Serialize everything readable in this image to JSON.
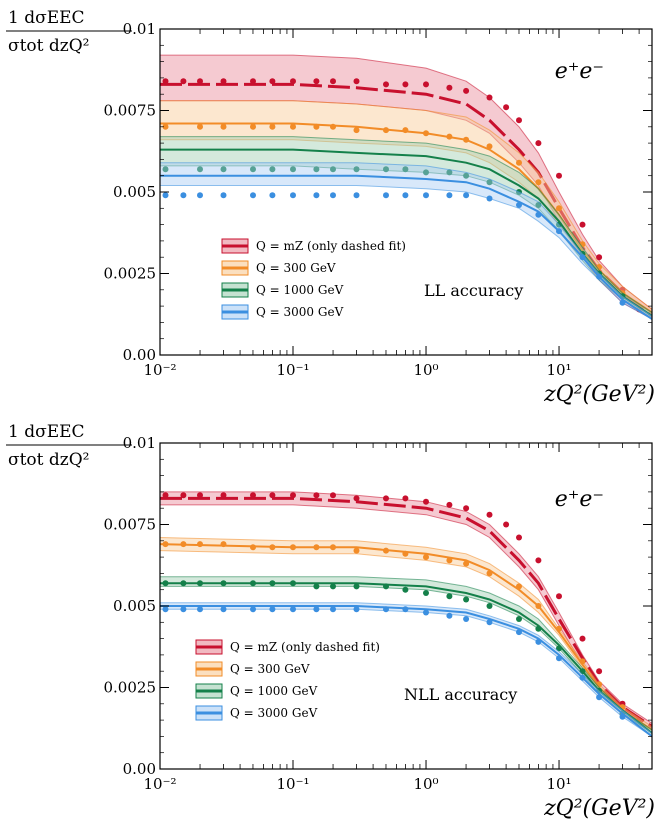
{
  "chart_data": [
    {
      "type": "line",
      "x_scale": "log",
      "xlim": [
        0.01,
        50
      ],
      "ylim": [
        0,
        0.01
      ],
      "x_ticks": [
        "10⁻²",
        "10⁻¹",
        "10⁰",
        "10¹"
      ],
      "y_ticks": [
        "0.00",
        "0.0025",
        "0.005",
        "0.0075",
        "0.01"
      ],
      "y_tick_values": [
        0,
        0.0025,
        0.005,
        0.0075,
        0.01
      ],
      "xlabel": "zQ²(GeV²)",
      "ylabel_top": "1 dσEEC",
      "ylabel_bottom": "σtot dzQ²",
      "corner_label": "e⁺e⁻",
      "accuracy_label": "LL accuracy",
      "legend_position": "lower-left",
      "series": [
        {
          "name": "Q = mZ (only dashed fit)",
          "color": "#c8102e",
          "band_color": "#e88a98",
          "x": [
            0.01,
            0.1,
            0.3,
            1,
            2,
            3,
            5,
            7,
            10,
            15,
            20,
            30,
            50
          ],
          "central": [
            0.0083,
            0.0083,
            0.0082,
            0.008,
            0.0077,
            0.0072,
            0.0063,
            0.0056,
            0.0045,
            0.0033,
            0.0026,
            0.0019,
            0.0012
          ],
          "upper": [
            0.0092,
            0.0092,
            0.0091,
            0.0088,
            0.0084,
            0.0079,
            0.007,
            0.0062,
            0.005,
            0.0037,
            0.0029,
            0.0021,
            0.0014
          ],
          "lower": [
            0.0078,
            0.0078,
            0.0077,
            0.0075,
            0.0072,
            0.0068,
            0.0059,
            0.0052,
            0.0041,
            0.003,
            0.0023,
            0.0016,
            0.0011
          ],
          "points_x": [
            0.011,
            0.015,
            0.02,
            0.03,
            0.05,
            0.07,
            0.1,
            0.15,
            0.2,
            0.3,
            0.5,
            0.7,
            1,
            1.5,
            2,
            3,
            4,
            5,
            7,
            10,
            15,
            20,
            30,
            40
          ],
          "points_y": [
            0.0084,
            0.0084,
            0.0084,
            0.0084,
            0.0084,
            0.0084,
            0.0084,
            0.0084,
            0.0084,
            0.0084,
            0.0083,
            0.0083,
            0.0083,
            0.0082,
            0.0081,
            0.0079,
            0.0076,
            0.0072,
            0.0065,
            0.0055,
            0.004,
            0.003,
            0.002,
            0.0014
          ]
        },
        {
          "name": "Q = 300 GeV",
          "color": "#f28c28",
          "band_color": "#f9c995",
          "x": [
            0.01,
            0.1,
            0.3,
            1,
            2,
            3,
            5,
            7,
            10,
            15,
            20,
            30,
            50
          ],
          "central": [
            0.0071,
            0.0071,
            0.007,
            0.0068,
            0.0066,
            0.0063,
            0.0057,
            0.0051,
            0.0043,
            0.0032,
            0.0026,
            0.0019,
            0.0013
          ],
          "upper": [
            0.0078,
            0.0078,
            0.0077,
            0.0075,
            0.0073,
            0.0069,
            0.0062,
            0.0056,
            0.0047,
            0.0035,
            0.0028,
            0.0021,
            0.0014
          ],
          "lower": [
            0.0066,
            0.0066,
            0.0065,
            0.0064,
            0.0062,
            0.0059,
            0.0053,
            0.0048,
            0.004,
            0.003,
            0.0024,
            0.0017,
            0.0012
          ],
          "points_x": [
            0.011,
            0.02,
            0.03,
            0.05,
            0.07,
            0.1,
            0.15,
            0.2,
            0.3,
            0.5,
            0.7,
            1,
            1.5,
            2,
            3,
            5,
            7,
            10,
            15,
            20,
            30
          ],
          "points_y": [
            0.007,
            0.007,
            0.007,
            0.007,
            0.007,
            0.007,
            0.007,
            0.007,
            0.0069,
            0.0069,
            0.0069,
            0.0068,
            0.0067,
            0.0066,
            0.0064,
            0.0059,
            0.0053,
            0.0045,
            0.0034,
            0.0027,
            0.0019
          ]
        },
        {
          "name": "Q = 1000 GeV",
          "color": "#14804a",
          "band_color": "#9fcfb2",
          "x": [
            0.01,
            0.1,
            0.3,
            1,
            2,
            3,
            5,
            7,
            10,
            15,
            20,
            30,
            50
          ],
          "central": [
            0.0063,
            0.0063,
            0.0062,
            0.0061,
            0.0059,
            0.0057,
            0.0052,
            0.0048,
            0.0041,
            0.0031,
            0.0025,
            0.0018,
            0.0012
          ],
          "upper": [
            0.0067,
            0.0067,
            0.0066,
            0.0065,
            0.0063,
            0.0061,
            0.0056,
            0.0051,
            0.0043,
            0.0033,
            0.0026,
            0.0019,
            0.0013
          ],
          "lower": [
            0.0058,
            0.0058,
            0.0057,
            0.0056,
            0.0055,
            0.0053,
            0.0049,
            0.0045,
            0.0038,
            0.0029,
            0.0023,
            0.0017,
            0.0011
          ],
          "points_x": [
            0.011,
            0.02,
            0.03,
            0.05,
            0.07,
            0.1,
            0.15,
            0.2,
            0.3,
            0.5,
            0.7,
            1,
            1.5,
            2,
            3,
            5,
            7,
            10,
            15,
            20,
            30
          ],
          "points_y": [
            0.0057,
            0.0057,
            0.0057,
            0.0057,
            0.0057,
            0.0057,
            0.0057,
            0.0057,
            0.0057,
            0.0057,
            0.0057,
            0.0056,
            0.0056,
            0.0055,
            0.0053,
            0.005,
            0.0046,
            0.004,
            0.0031,
            0.0025,
            0.0018
          ]
        },
        {
          "name": "Q = 3000 GeV",
          "color": "#3b8fe0",
          "band_color": "#a9cdf3",
          "x": [
            0.01,
            0.1,
            0.3,
            1,
            2,
            3,
            5,
            7,
            10,
            15,
            20,
            30,
            50
          ],
          "central": [
            0.0055,
            0.0055,
            0.0055,
            0.0054,
            0.0053,
            0.0051,
            0.0047,
            0.0044,
            0.0038,
            0.003,
            0.0024,
            0.0017,
            0.0011
          ],
          "upper": [
            0.0059,
            0.0059,
            0.0059,
            0.0058,
            0.0056,
            0.0054,
            0.005,
            0.0047,
            0.004,
            0.0031,
            0.0025,
            0.0018,
            0.0012
          ],
          "lower": [
            0.0052,
            0.0052,
            0.0052,
            0.0051,
            0.005,
            0.0048,
            0.0045,
            0.0041,
            0.0036,
            0.0028,
            0.0023,
            0.0016,
            0.0011
          ],
          "points_x": [
            0.011,
            0.015,
            0.02,
            0.03,
            0.05,
            0.07,
            0.1,
            0.15,
            0.2,
            0.3,
            0.5,
            0.7,
            1,
            1.5,
            2,
            3,
            5,
            7,
            10,
            15,
            20,
            30
          ],
          "points_y": [
            0.0049,
            0.0049,
            0.0049,
            0.0049,
            0.0049,
            0.0049,
            0.0049,
            0.0049,
            0.0049,
            0.0049,
            0.0049,
            0.0049,
            0.0049,
            0.0049,
            0.0049,
            0.0048,
            0.0046,
            0.0043,
            0.0038,
            0.003,
            0.0024,
            0.0016
          ]
        }
      ]
    },
    {
      "type": "line",
      "x_scale": "log",
      "xlim": [
        0.01,
        50
      ],
      "ylim": [
        0,
        0.01
      ],
      "x_ticks": [
        "10⁻²",
        "10⁻¹",
        "10⁰",
        "10¹"
      ],
      "y_ticks": [
        "0.00",
        "0.0025",
        "0.005",
        "0.0075",
        "0.01"
      ],
      "y_tick_values": [
        0,
        0.0025,
        0.005,
        0.0075,
        0.01
      ],
      "xlabel": "zQ²(GeV²)",
      "ylabel_top": "1 dσEEC",
      "ylabel_bottom": "σtot dzQ²",
      "corner_label": "e⁺e⁻",
      "accuracy_label": "NLL accuracy",
      "legend_position": "lower-left",
      "series": [
        {
          "name": "Q = mZ (only dashed fit)",
          "color": "#c8102e",
          "band_color": "#e88a98",
          "x": [
            0.01,
            0.1,
            0.3,
            1,
            2,
            3,
            5,
            7,
            10,
            15,
            20,
            30,
            50
          ],
          "central": [
            0.0083,
            0.0083,
            0.0082,
            0.008,
            0.0077,
            0.0073,
            0.0064,
            0.0057,
            0.0046,
            0.0034,
            0.0026,
            0.0019,
            0.0013
          ],
          "upper": [
            0.0085,
            0.0085,
            0.0084,
            0.0082,
            0.0079,
            0.0075,
            0.0066,
            0.0059,
            0.0048,
            0.0035,
            0.0027,
            0.002,
            0.0014
          ],
          "lower": [
            0.0081,
            0.0081,
            0.008,
            0.0078,
            0.0075,
            0.0071,
            0.0062,
            0.0055,
            0.0044,
            0.0032,
            0.0025,
            0.0018,
            0.0012
          ],
          "points_x": [
            0.011,
            0.015,
            0.02,
            0.03,
            0.05,
            0.07,
            0.1,
            0.15,
            0.2,
            0.3,
            0.5,
            0.7,
            1,
            1.5,
            2,
            3,
            4,
            5,
            7,
            10,
            15,
            20,
            30,
            40
          ],
          "points_y": [
            0.0084,
            0.0084,
            0.0084,
            0.0084,
            0.0084,
            0.0084,
            0.0084,
            0.0084,
            0.0084,
            0.0083,
            0.0083,
            0.0083,
            0.0082,
            0.0081,
            0.008,
            0.0078,
            0.0075,
            0.0071,
            0.0064,
            0.0053,
            0.004,
            0.003,
            0.002,
            0.0015
          ]
        },
        {
          "name": "Q = 300 GeV",
          "color": "#f28c28",
          "band_color": "#f9c995",
          "x": [
            0.01,
            0.1,
            0.3,
            1,
            2,
            3,
            5,
            7,
            10,
            15,
            20,
            30,
            50
          ],
          "central": [
            0.0069,
            0.0068,
            0.0068,
            0.0066,
            0.0064,
            0.0061,
            0.0055,
            0.005,
            0.0042,
            0.0032,
            0.0025,
            0.0018,
            0.0012
          ],
          "upper": [
            0.0071,
            0.007,
            0.007,
            0.0068,
            0.0066,
            0.0063,
            0.0057,
            0.0052,
            0.0043,
            0.0033,
            0.0026,
            0.0019,
            0.0013
          ],
          "lower": [
            0.0067,
            0.0066,
            0.0066,
            0.0064,
            0.0062,
            0.0059,
            0.0053,
            0.0048,
            0.0041,
            0.0031,
            0.0024,
            0.0017,
            0.0012
          ],
          "points_x": [
            0.011,
            0.015,
            0.02,
            0.03,
            0.05,
            0.07,
            0.1,
            0.15,
            0.2,
            0.3,
            0.5,
            0.7,
            1,
            1.5,
            2,
            3,
            5,
            7,
            10,
            15,
            20,
            30
          ],
          "points_y": [
            0.0069,
            0.0069,
            0.0069,
            0.0069,
            0.0068,
            0.0068,
            0.0068,
            0.0068,
            0.0068,
            0.0067,
            0.0067,
            0.0066,
            0.0065,
            0.0064,
            0.0063,
            0.006,
            0.0056,
            0.005,
            0.0043,
            0.0033,
            0.0026,
            0.0019
          ]
        },
        {
          "name": "Q = 1000 GeV",
          "color": "#14804a",
          "band_color": "#9fcfb2",
          "x": [
            0.01,
            0.1,
            0.3,
            1,
            2,
            3,
            5,
            7,
            10,
            15,
            20,
            30,
            50
          ],
          "central": [
            0.0057,
            0.0057,
            0.0057,
            0.0056,
            0.0054,
            0.0052,
            0.0048,
            0.0044,
            0.0038,
            0.003,
            0.0024,
            0.0018,
            0.0011
          ],
          "upper": [
            0.0059,
            0.0059,
            0.0059,
            0.0058,
            0.0056,
            0.0054,
            0.005,
            0.0046,
            0.0039,
            0.0031,
            0.0025,
            0.0018,
            0.0012
          ],
          "lower": [
            0.0056,
            0.0056,
            0.0056,
            0.0055,
            0.0053,
            0.0051,
            0.0047,
            0.0043,
            0.0037,
            0.0029,
            0.0023,
            0.0017,
            0.0011
          ],
          "points_x": [
            0.011,
            0.015,
            0.02,
            0.03,
            0.05,
            0.07,
            0.1,
            0.15,
            0.2,
            0.3,
            0.5,
            0.7,
            1,
            1.5,
            2,
            3,
            5,
            7,
            10,
            15,
            20,
            30
          ],
          "points_y": [
            0.0057,
            0.0057,
            0.0057,
            0.0057,
            0.0057,
            0.0057,
            0.0057,
            0.0056,
            0.0056,
            0.0056,
            0.0056,
            0.0055,
            0.0054,
            0.0053,
            0.0052,
            0.005,
            0.0046,
            0.0043,
            0.0037,
            0.003,
            0.0024,
            0.0017
          ]
        },
        {
          "name": "Q = 3000 GeV",
          "color": "#3b8fe0",
          "band_color": "#a9cdf3",
          "x": [
            0.01,
            0.1,
            0.3,
            1,
            2,
            3,
            5,
            7,
            10,
            15,
            20,
            30,
            50
          ],
          "central": [
            0.005,
            0.005,
            0.005,
            0.0049,
            0.0048,
            0.0046,
            0.0043,
            0.004,
            0.0035,
            0.0028,
            0.0023,
            0.0017,
            0.001
          ],
          "upper": [
            0.0051,
            0.0051,
            0.0051,
            0.005,
            0.0049,
            0.0047,
            0.0044,
            0.0041,
            0.0036,
            0.0029,
            0.0024,
            0.0018,
            0.0011
          ],
          "lower": [
            0.0049,
            0.0049,
            0.0049,
            0.0048,
            0.0047,
            0.0045,
            0.0042,
            0.0039,
            0.0034,
            0.0027,
            0.0022,
            0.0016,
            0.001
          ],
          "points_x": [
            0.011,
            0.015,
            0.02,
            0.03,
            0.05,
            0.07,
            0.1,
            0.15,
            0.2,
            0.3,
            0.5,
            0.7,
            1,
            1.5,
            2,
            3,
            5,
            7,
            10,
            15,
            20,
            30
          ],
          "points_y": [
            0.0049,
            0.0049,
            0.0049,
            0.0049,
            0.0049,
            0.0049,
            0.0049,
            0.0049,
            0.0049,
            0.0049,
            0.0049,
            0.0049,
            0.0048,
            0.0047,
            0.0046,
            0.0045,
            0.0042,
            0.0039,
            0.0034,
            0.0028,
            0.0022,
            0.0016
          ]
        }
      ]
    }
  ]
}
